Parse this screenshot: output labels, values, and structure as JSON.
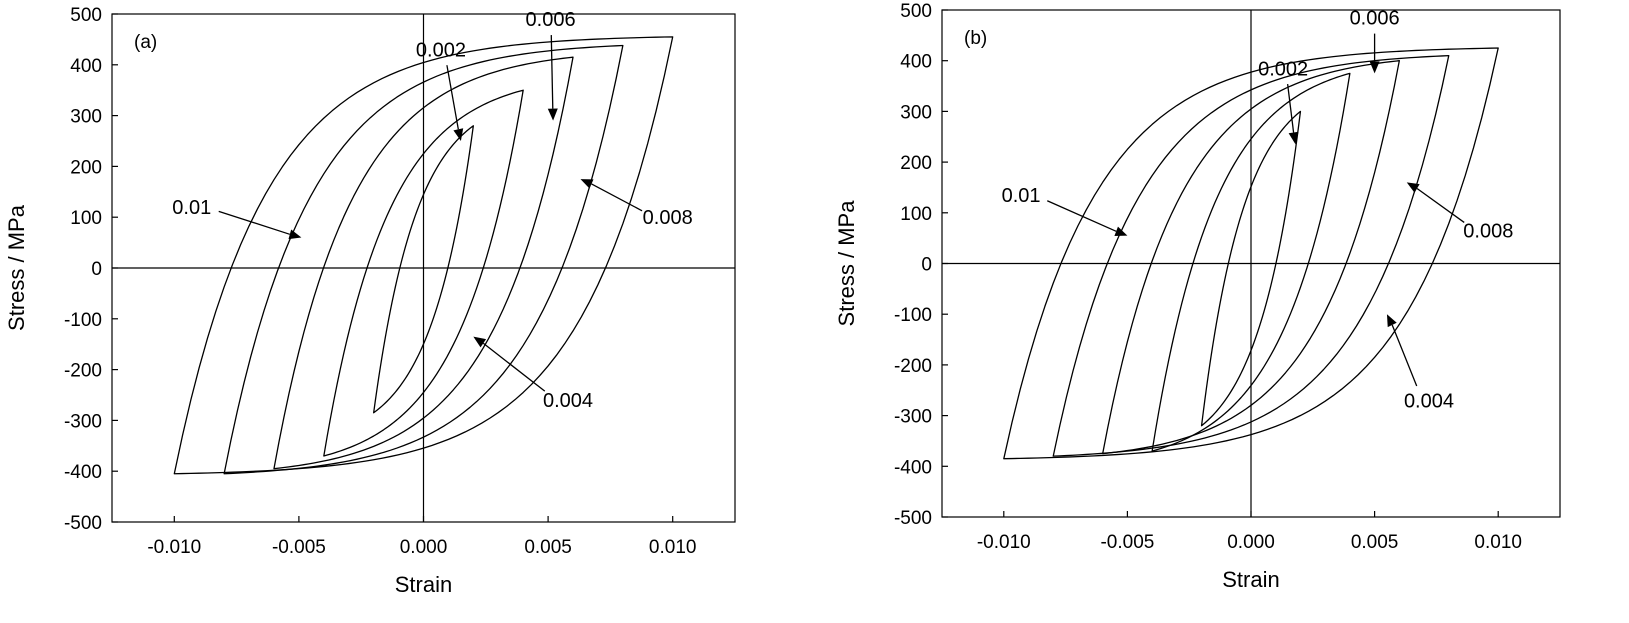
{
  "chart_data": [
    {
      "type": "line",
      "panel_label": "(a)",
      "xlabel": "Strain",
      "ylabel": "Stress / MPa",
      "xlim": [
        -0.0125,
        0.0125
      ],
      "ylim": [
        -500,
        500
      ],
      "x_ticks": [
        -0.01,
        -0.005,
        0.0,
        0.005,
        0.01
      ],
      "x_tick_labels": [
        "-0.010",
        "-0.005",
        "0.000",
        "0.005",
        "0.010"
      ],
      "y_ticks": [
        -500,
        -400,
        -300,
        -200,
        -100,
        0,
        100,
        200,
        300,
        400,
        500
      ],
      "y_tick_labels": [
        "-500",
        "-400",
        "-300",
        "-200",
        "-100",
        "0",
        "100",
        "200",
        "300",
        "400",
        "500"
      ],
      "grid": false,
      "series": [
        {
          "name": "0.002",
          "amplitude": 0.002,
          "peak_stress": 280,
          "min_stress": -285
        },
        {
          "name": "0.004",
          "amplitude": 0.004,
          "peak_stress": 350,
          "min_stress": -370
        },
        {
          "name": "0.006",
          "amplitude": 0.006,
          "peak_stress": 415,
          "min_stress": -395
        },
        {
          "name": "0.008",
          "amplitude": 0.008,
          "peak_stress": 438,
          "min_stress": -405
        },
        {
          "name": "0.01",
          "amplitude": 0.01,
          "peak_stress": 455,
          "min_stress": -405
        }
      ],
      "annotations": [
        {
          "text": "0.002",
          "label_at": [
            0.0007,
            430
          ],
          "arrow_to": [
            0.0015,
            250
          ]
        },
        {
          "text": "0.006",
          "label_at": [
            0.0051,
            490
          ],
          "arrow_to": [
            0.0052,
            290
          ]
        },
        {
          "text": "0.01",
          "label_at": [
            -0.0093,
            120
          ],
          "arrow_to": [
            -0.0049,
            60
          ]
        },
        {
          "text": "0.008",
          "label_at": [
            0.0098,
            100
          ],
          "arrow_to": [
            0.0063,
            175
          ]
        },
        {
          "text": "0.004",
          "label_at": [
            0.0058,
            -260
          ],
          "arrow_to": [
            0.002,
            -135
          ]
        }
      ]
    },
    {
      "type": "line",
      "panel_label": "(b)",
      "xlabel": "Strain",
      "ylabel": "Stress / MPa",
      "xlim": [
        -0.0125,
        0.0125
      ],
      "ylim": [
        -500,
        500
      ],
      "x_ticks": [
        -0.01,
        -0.005,
        0.0,
        0.005,
        0.01
      ],
      "x_tick_labels": [
        "-0.010",
        "-0.005",
        "0.000",
        "0.005",
        "0.010"
      ],
      "y_ticks": [
        -500,
        -400,
        -300,
        -200,
        -100,
        0,
        100,
        200,
        300,
        400,
        500
      ],
      "y_tick_labels": [
        "-500",
        "-400",
        "-300",
        "-200",
        "-100",
        "0",
        "100",
        "200",
        "300",
        "400",
        "500"
      ],
      "grid": false,
      "series": [
        {
          "name": "0.002",
          "amplitude": 0.002,
          "peak_stress": 300,
          "min_stress": -320
        },
        {
          "name": "0.004",
          "amplitude": 0.004,
          "peak_stress": 375,
          "min_stress": -370
        },
        {
          "name": "0.006",
          "amplitude": 0.006,
          "peak_stress": 400,
          "min_stress": -375
        },
        {
          "name": "0.008",
          "amplitude": 0.008,
          "peak_stress": 410,
          "min_stress": -380
        },
        {
          "name": "0.01",
          "amplitude": 0.01,
          "peak_stress": 425,
          "min_stress": -385
        }
      ],
      "annotations": [
        {
          "text": "0.002",
          "label_at": [
            0.0013,
            385
          ],
          "arrow_to": [
            0.0018,
            235
          ]
        },
        {
          "text": "0.006",
          "label_at": [
            0.005,
            485
          ],
          "arrow_to": [
            0.005,
            375
          ]
        },
        {
          "text": "0.01",
          "label_at": [
            -0.0093,
            135
          ],
          "arrow_to": [
            -0.005,
            55
          ]
        },
        {
          "text": "0.008",
          "label_at": [
            0.0096,
            65
          ],
          "arrow_to": [
            0.0063,
            160
          ]
        },
        {
          "text": "0.004",
          "label_at": [
            0.0072,
            -270
          ],
          "arrow_to": [
            0.0055,
            -100
          ]
        }
      ]
    }
  ]
}
